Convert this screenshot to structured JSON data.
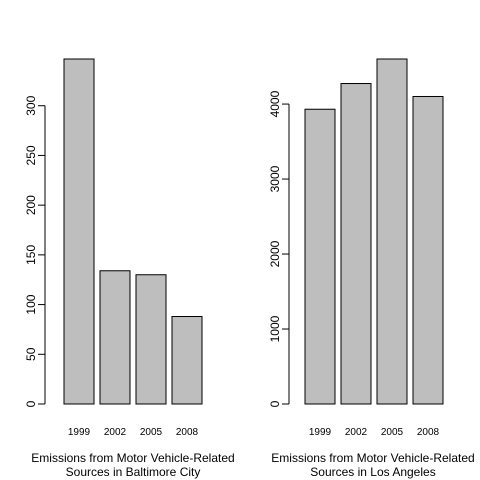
{
  "chart_data": [
    {
      "type": "bar",
      "categories": [
        "1999",
        "2002",
        "2005",
        "2008"
      ],
      "values": [
        347,
        134,
        130,
        88
      ],
      "xlabel_lines": [
        "Emissions from Motor Vehicle-Related",
        "Sources in Baltimore City"
      ],
      "ylabel": "",
      "yticks": [
        0,
        50,
        100,
        150,
        200,
        250,
        300
      ],
      "ylim": [
        0,
        347
      ],
      "bar_color": "#bebebe"
    },
    {
      "type": "bar",
      "categories": [
        "1999",
        "2002",
        "2005",
        "2008"
      ],
      "values": [
        3931,
        4274,
        4601,
        4101
      ],
      "xlabel_lines": [
        "Emissions from Motor Vehicle-Related",
        "Sources in Los Angeles"
      ],
      "ylabel": "",
      "yticks": [
        0,
        1000,
        2000,
        3000,
        4000
      ],
      "ylim": [
        0,
        4601
      ],
      "bar_color": "#bebebe"
    }
  ]
}
